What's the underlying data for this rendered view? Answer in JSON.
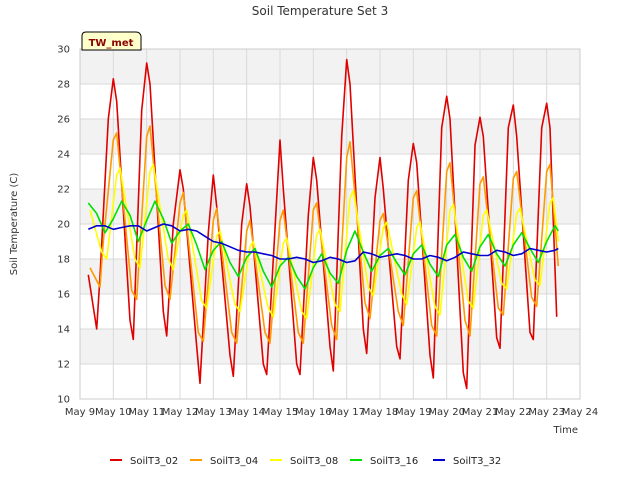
{
  "chart_data": {
    "type": "line",
    "title": "Soil Temperature Set 3",
    "xlabel": "Time",
    "ylabel": "Soil Temperature (C)",
    "badge": "TW_met",
    "ylim": [
      10,
      30
    ],
    "yticks": [
      10,
      12,
      14,
      16,
      18,
      20,
      22,
      24,
      26,
      28,
      30
    ],
    "xlim": [
      9,
      24
    ],
    "xticks": [
      {
        "value": 9,
        "label": "May 9"
      },
      {
        "value": 10,
        "label": "May 10"
      },
      {
        "value": 11,
        "label": "May 11"
      },
      {
        "value": 12,
        "label": "May 12"
      },
      {
        "value": 13,
        "label": "May 13"
      },
      {
        "value": 14,
        "label": "May 14"
      },
      {
        "value": 15,
        "label": "May 15"
      },
      {
        "value": 16,
        "label": "May 16"
      },
      {
        "value": 17,
        "label": "May 17"
      },
      {
        "value": 18,
        "label": "May 18"
      },
      {
        "value": 19,
        "label": "May 19"
      },
      {
        "value": 20,
        "label": "May 20"
      },
      {
        "value": 21,
        "label": "May 21"
      },
      {
        "value": 22,
        "label": "May 22"
      },
      {
        "value": 23,
        "label": "May 23"
      },
      {
        "value": 24,
        "label": "May 24"
      }
    ],
    "grid": true,
    "legend_position": "bottom",
    "series": [
      {
        "name": "SoilT3_02",
        "color": "#e00000",
        "x": [
          9.25,
          9.5,
          9.6,
          9.85,
          10.0,
          10.1,
          10.5,
          10.6,
          10.85,
          11.0,
          11.1,
          11.5,
          11.6,
          11.8,
          12.0,
          12.1,
          12.5,
          12.6,
          12.85,
          13.0,
          13.1,
          13.5,
          13.6,
          13.85,
          14.0,
          14.1,
          14.5,
          14.6,
          14.8,
          15.0,
          15.1,
          15.5,
          15.6,
          15.85,
          16.0,
          16.1,
          16.5,
          16.6,
          16.85,
          17.0,
          17.1,
          17.5,
          17.6,
          17.85,
          18.0,
          18.1,
          18.5,
          18.6,
          18.85,
          19.0,
          19.1,
          19.5,
          19.6,
          19.85,
          20.0,
          20.1,
          20.5,
          20.6,
          20.85,
          21.0,
          21.1,
          21.5,
          21.6,
          21.85,
          22.0,
          22.1,
          22.5,
          22.6,
          22.85,
          23.0,
          23.1,
          23.3
        ],
        "values": [
          17.1,
          14.0,
          17.0,
          26.0,
          28.3,
          27.0,
          14.5,
          13.4,
          26.5,
          29.2,
          28.0,
          15.0,
          13.6,
          20.0,
          23.1,
          22.0,
          13.0,
          10.9,
          19.5,
          22.8,
          21.0,
          12.5,
          11.3,
          20.0,
          22.3,
          21.0,
          12.0,
          11.4,
          18.0,
          24.8,
          22.0,
          12.0,
          11.4,
          20.5,
          23.8,
          22.5,
          13.0,
          11.6,
          25.0,
          29.4,
          28.0,
          14.0,
          12.6,
          21.5,
          23.8,
          22.0,
          13.0,
          12.3,
          22.5,
          24.6,
          23.5,
          12.5,
          11.2,
          25.5,
          27.3,
          26.0,
          11.5,
          10.6,
          24.5,
          26.1,
          25.0,
          13.5,
          12.9,
          25.5,
          26.8,
          25.0,
          13.8,
          13.4,
          25.5,
          26.9,
          25.5,
          14.7
        ]
      },
      {
        "name": "SoilT3_04",
        "color": "#ff9900",
        "x": [
          9.3,
          9.6,
          9.7,
          10.0,
          10.1,
          10.55,
          10.7,
          11.0,
          11.1,
          11.55,
          11.7,
          12.0,
          12.1,
          12.55,
          12.7,
          13.0,
          13.1,
          13.55,
          13.7,
          14.0,
          14.1,
          14.55,
          14.7,
          15.0,
          15.1,
          15.55,
          15.7,
          16.0,
          16.1,
          16.55,
          16.7,
          17.0,
          17.1,
          17.55,
          17.7,
          18.0,
          18.1,
          18.55,
          18.7,
          19.0,
          19.1,
          19.55,
          19.7,
          20.0,
          20.1,
          20.55,
          20.7,
          21.0,
          21.1,
          21.55,
          21.7,
          22.0,
          22.1,
          22.55,
          22.7,
          23.0,
          23.1,
          23.35
        ],
        "values": [
          17.5,
          16.4,
          19.0,
          24.8,
          25.2,
          16.2,
          15.7,
          25.0,
          25.6,
          16.5,
          15.7,
          21.2,
          21.8,
          13.8,
          13.3,
          20.2,
          20.9,
          13.8,
          13.2,
          19.6,
          20.2,
          13.8,
          13.2,
          20.2,
          20.8,
          13.8,
          13.2,
          20.8,
          21.2,
          14.2,
          13.4,
          23.8,
          24.7,
          15.5,
          14.6,
          20.2,
          20.6,
          15.0,
          14.2,
          21.5,
          21.9,
          14.2,
          13.6,
          23.0,
          23.5,
          14.5,
          13.6,
          22.3,
          22.7,
          15.2,
          14.8,
          22.6,
          23.0,
          15.8,
          15.3,
          23.0,
          23.4,
          17.6
        ]
      },
      {
        "name": "SoilT3_08",
        "color": "#ffff00",
        "x": [
          9.3,
          9.65,
          9.8,
          10.1,
          10.2,
          10.65,
          10.8,
          11.1,
          11.2,
          11.65,
          11.8,
          12.1,
          12.2,
          12.65,
          12.8,
          13.1,
          13.2,
          13.65,
          13.8,
          14.1,
          14.2,
          14.65,
          14.8,
          15.1,
          15.2,
          15.65,
          15.8,
          16.1,
          16.2,
          16.65,
          16.8,
          17.1,
          17.2,
          17.65,
          17.8,
          18.1,
          18.2,
          18.65,
          18.8,
          19.1,
          19.2,
          19.65,
          19.8,
          20.1,
          20.2,
          20.65,
          20.8,
          21.1,
          21.2,
          21.65,
          21.8,
          22.1,
          22.2,
          22.65,
          22.8,
          23.1,
          23.2,
          23.35
        ],
        "values": [
          20.8,
          18.4,
          18.0,
          22.8,
          23.2,
          18.0,
          17.5,
          23.0,
          23.4,
          18.0,
          17.4,
          20.5,
          20.8,
          15.6,
          15.2,
          19.3,
          19.6,
          15.4,
          15.0,
          18.7,
          19.0,
          15.2,
          14.7,
          18.9,
          19.2,
          15.0,
          14.6,
          19.4,
          19.7,
          15.4,
          15.0,
          21.5,
          21.9,
          16.4,
          15.9,
          19.8,
          20.1,
          16.0,
          15.4,
          19.8,
          20.1,
          15.3,
          14.8,
          20.8,
          21.1,
          15.6,
          15.2,
          20.5,
          20.8,
          16.6,
          16.3,
          20.6,
          20.9,
          16.8,
          16.5,
          21.2,
          21.5,
          19.0
        ]
      },
      {
        "name": "SoilT3_16",
        "color": "#00e000",
        "x": [
          9.25,
          9.5,
          9.75,
          10.0,
          10.25,
          10.5,
          10.75,
          11.0,
          11.25,
          11.5,
          11.75,
          12.0,
          12.25,
          12.5,
          12.75,
          13.0,
          13.25,
          13.5,
          13.75,
          14.0,
          14.25,
          14.5,
          14.75,
          15.0,
          15.25,
          15.5,
          15.75,
          16.0,
          16.25,
          16.5,
          16.75,
          17.0,
          17.25,
          17.5,
          17.75,
          18.0,
          18.25,
          18.5,
          18.75,
          19.0,
          19.25,
          19.5,
          19.75,
          20.0,
          20.25,
          20.5,
          20.75,
          21.0,
          21.25,
          21.5,
          21.75,
          22.0,
          22.25,
          22.5,
          22.75,
          23.0,
          23.25,
          23.35
        ],
        "values": [
          21.2,
          20.6,
          19.5,
          20.3,
          21.3,
          20.5,
          19.0,
          20.2,
          21.3,
          20.3,
          18.9,
          19.6,
          20.0,
          18.8,
          17.4,
          18.5,
          19.0,
          17.8,
          17.0,
          18.1,
          18.6,
          17.3,
          16.4,
          17.6,
          18.1,
          17.0,
          16.3,
          17.5,
          18.3,
          17.2,
          16.6,
          18.5,
          19.6,
          18.4,
          17.3,
          18.2,
          18.6,
          17.8,
          17.1,
          18.3,
          18.8,
          17.7,
          17.0,
          18.8,
          19.4,
          18.1,
          17.3,
          18.7,
          19.4,
          18.3,
          17.6,
          18.8,
          19.5,
          18.6,
          17.8,
          19.0,
          19.9,
          19.6
        ]
      },
      {
        "name": "SoilT3_32",
        "color": "#0000cc",
        "x": [
          9.25,
          9.5,
          9.75,
          10.0,
          10.25,
          10.5,
          10.75,
          11.0,
          11.25,
          11.5,
          11.75,
          12.0,
          12.25,
          12.5,
          12.75,
          13.0,
          13.25,
          13.5,
          13.75,
          14.0,
          14.25,
          14.5,
          14.75,
          15.0,
          15.25,
          15.5,
          15.75,
          16.0,
          16.25,
          16.5,
          16.75,
          17.0,
          17.25,
          17.5,
          17.75,
          18.0,
          18.25,
          18.5,
          18.75,
          19.0,
          19.25,
          19.5,
          19.75,
          20.0,
          20.25,
          20.5,
          20.75,
          21.0,
          21.25,
          21.5,
          21.75,
          22.0,
          22.25,
          22.5,
          22.75,
          23.0,
          23.25,
          23.35
        ],
        "values": [
          19.7,
          19.9,
          19.9,
          19.7,
          19.8,
          19.9,
          19.9,
          19.6,
          19.8,
          20.0,
          19.9,
          19.6,
          19.7,
          19.6,
          19.3,
          19.0,
          18.9,
          18.7,
          18.5,
          18.4,
          18.4,
          18.3,
          18.2,
          18.0,
          18.0,
          18.1,
          18.0,
          17.8,
          17.9,
          18.1,
          18.0,
          17.8,
          17.9,
          18.4,
          18.3,
          18.1,
          18.2,
          18.3,
          18.2,
          18.0,
          18.0,
          18.2,
          18.1,
          17.9,
          18.1,
          18.4,
          18.3,
          18.2,
          18.2,
          18.5,
          18.4,
          18.2,
          18.3,
          18.6,
          18.5,
          18.4,
          18.5,
          18.6
        ]
      }
    ]
  }
}
